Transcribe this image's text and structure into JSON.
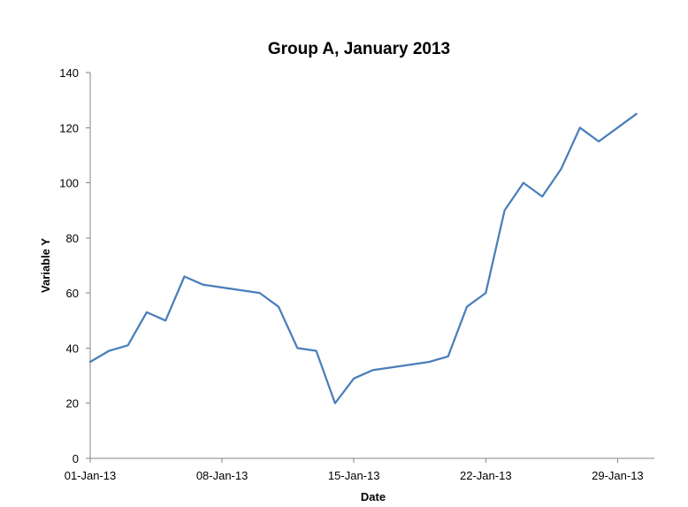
{
  "chart_data": {
    "type": "line",
    "title": "Group A, January 2013",
    "xlabel": "Date",
    "ylabel": "Variable  Y",
    "ylim": [
      0,
      140
    ],
    "yticks": [
      0,
      20,
      40,
      60,
      80,
      100,
      120,
      140
    ],
    "xlim": [
      "2013-01-01",
      "2013-01-31"
    ],
    "xticks": [
      {
        "date": "2013-01-01",
        "label": "01-Jan-13"
      },
      {
        "date": "2013-01-08",
        "label": "08-Jan-13"
      },
      {
        "date": "2013-01-15",
        "label": "15-Jan-13"
      },
      {
        "date": "2013-01-22",
        "label": "22-Jan-13"
      },
      {
        "date": "2013-01-29",
        "label": "29-Jan-13"
      }
    ],
    "grid": false,
    "legend": "none",
    "series": [
      {
        "color": "#4a7ebb",
        "x": [
          "2013-01-01",
          "2013-01-02",
          "2013-01-03",
          "2013-01-04",
          "2013-01-05",
          "2013-01-06",
          "2013-01-07",
          "2013-01-08",
          "2013-01-09",
          "2013-01-10",
          "2013-01-11",
          "2013-01-12",
          "2013-01-13",
          "2013-01-14",
          "2013-01-15",
          "2013-01-16",
          "2013-01-17",
          "2013-01-18",
          "2013-01-19",
          "2013-01-20",
          "2013-01-21",
          "2013-01-22",
          "2013-01-23",
          "2013-01-24",
          "2013-01-25",
          "2013-01-26",
          "2013-01-27",
          "2013-01-28",
          "2013-01-29",
          "2013-01-30"
        ],
        "values": [
          35,
          39,
          41,
          53,
          50,
          66,
          63,
          62,
          61,
          60,
          55,
          40,
          39,
          20,
          29,
          32,
          33,
          34,
          35,
          37,
          55,
          60,
          90,
          100,
          95,
          105,
          120,
          115,
          120,
          125
        ]
      }
    ]
  }
}
